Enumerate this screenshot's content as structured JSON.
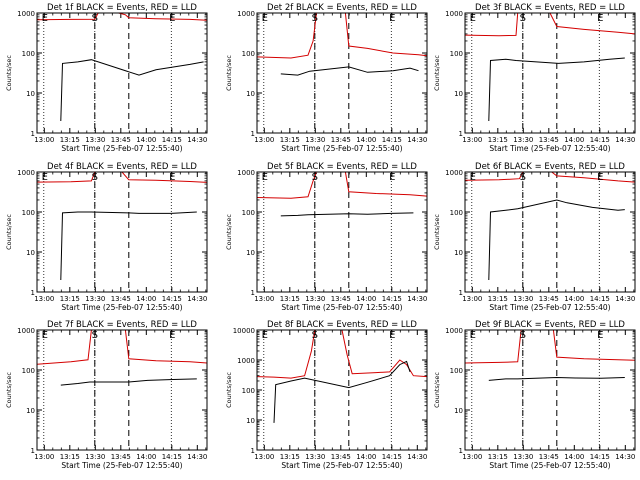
{
  "colors": {
    "events": "#000000",
    "lld": "#d40000",
    "axes": "#000000",
    "background": "#ffffff"
  },
  "shared": {
    "xlabel": "Start Time (25-Feb-07 12:55:40)",
    "ylabel": "Counts/sec",
    "x_ticks": [
      "13:00",
      "13:15",
      "13:30",
      "13:45",
      "14:00",
      "14:15",
      "14:30"
    ],
    "xlim_minutes": [
      0,
      100
    ],
    "marker_S": "S",
    "marker_E": "E"
  },
  "chart_data": [
    {
      "type": "line",
      "title": "Det 1f BLACK = Events, RED = LLD",
      "ylim": [
        1,
        1000
      ],
      "yscale": "log",
      "y_ticks": [
        "1",
        "10",
        "100",
        "1000"
      ],
      "dotted_x": [
        4,
        34,
        79
      ],
      "dashed_x": [
        34,
        54
      ],
      "s_x": 34,
      "e_x": [
        4,
        79
      ],
      "series": [
        {
          "color_key": "lld",
          "points": [
            [
              0,
              680
            ],
            [
              20,
              690
            ],
            [
              34,
              700
            ],
            [
              36,
              1000
            ],
            [
              48,
              1000
            ],
            [
              52,
              900
            ],
            [
              54,
              760
            ],
            [
              70,
              720
            ],
            [
              90,
              690
            ],
            [
              100,
              660
            ]
          ]
        },
        {
          "color_key": "events",
          "points": [
            [
              14,
              2
            ],
            [
              15,
              55
            ],
            [
              24,
              60
            ],
            [
              32,
              68
            ],
            [
              60,
              28
            ],
            [
              70,
              38
            ],
            [
              90,
              52
            ],
            [
              98,
              60
            ]
          ]
        }
      ]
    },
    {
      "type": "line",
      "title": "Det 2f BLACK = Events, RED = LLD",
      "ylim": [
        1,
        1000
      ],
      "yscale": "log",
      "y_ticks": [
        "1",
        "10",
        "100",
        "1000"
      ],
      "dotted_x": [
        4,
        34,
        79
      ],
      "dashed_x": [
        34,
        54
      ],
      "s_x": 34,
      "e_x": [
        4,
        79
      ],
      "series": [
        {
          "color_key": "lld",
          "points": [
            [
              0,
              80
            ],
            [
              20,
              75
            ],
            [
              30,
              88
            ],
            [
              33,
              200
            ],
            [
              35,
              1000
            ],
            [
              52,
              1000
            ],
            [
              54,
              150
            ],
            [
              65,
              130
            ],
            [
              80,
              100
            ],
            [
              95,
              90
            ],
            [
              100,
              85
            ]
          ]
        },
        {
          "color_key": "events",
          "points": [
            [
              14,
              30
            ],
            [
              24,
              28
            ],
            [
              31,
              35
            ],
            [
              54,
              45
            ],
            [
              65,
              33
            ],
            [
              80,
              36
            ],
            [
              90,
              42
            ],
            [
              95,
              36
            ]
          ]
        }
      ]
    },
    {
      "type": "line",
      "title": "Det 3f BLACK = Events, RED = LLD",
      "ylim": [
        1,
        1000
      ],
      "yscale": "log",
      "y_ticks": [
        "1",
        "10",
        "100",
        "1000"
      ],
      "dotted_x": [
        4,
        34,
        79
      ],
      "dashed_x": [
        34,
        54
      ],
      "s_x": 34,
      "e_x": [
        4,
        79
      ],
      "series": [
        {
          "color_key": "lld",
          "points": [
            [
              0,
              280
            ],
            [
              20,
              270
            ],
            [
              30,
              275
            ],
            [
              31,
              1000
            ],
            [
              50,
              1000
            ],
            [
              54,
              460
            ],
            [
              70,
              390
            ],
            [
              90,
              330
            ],
            [
              100,
              300
            ]
          ]
        },
        {
          "color_key": "events",
          "points": [
            [
              14,
              2
            ],
            [
              15,
              65
            ],
            [
              24,
              70
            ],
            [
              30,
              65
            ],
            [
              55,
              55
            ],
            [
              70,
              60
            ],
            [
              85,
              70
            ],
            [
              94,
              75
            ]
          ]
        }
      ]
    },
    {
      "type": "line",
      "title": "Det 4f BLACK = Events, RED = LLD",
      "ylim": [
        1,
        1000
      ],
      "yscale": "log",
      "y_ticks": [
        "1",
        "10",
        "100",
        "1000"
      ],
      "dotted_x": [
        4,
        34,
        79
      ],
      "dashed_x": [
        34,
        54
      ],
      "s_x": 34,
      "e_x": [
        4,
        79
      ],
      "series": [
        {
          "color_key": "lld",
          "points": [
            [
              0,
              560
            ],
            [
              20,
              570
            ],
            [
              32,
              600
            ],
            [
              34,
              1000
            ],
            [
              50,
              1000
            ],
            [
              54,
              640
            ],
            [
              70,
              620
            ],
            [
              90,
              580
            ],
            [
              100,
              550
            ]
          ]
        },
        {
          "color_key": "events",
          "points": [
            [
              14,
              2
            ],
            [
              15,
              95
            ],
            [
              24,
              100
            ],
            [
              32,
              100
            ],
            [
              54,
              95
            ],
            [
              60,
              92
            ],
            [
              79,
              92
            ],
            [
              94,
              100
            ]
          ]
        }
      ]
    },
    {
      "type": "line",
      "title": "Det 5f BLACK = Events, RED = LLD",
      "ylim": [
        1,
        1000
      ],
      "yscale": "log",
      "y_ticks": [
        "1",
        "10",
        "100",
        "1000"
      ],
      "dotted_x": [
        4,
        34,
        79
      ],
      "dashed_x": [
        34,
        54
      ],
      "s_x": 34,
      "e_x": [
        4,
        79
      ],
      "series": [
        {
          "color_key": "lld",
          "points": [
            [
              0,
              230
            ],
            [
              20,
              220
            ],
            [
              30,
              240
            ],
            [
              33,
              600
            ],
            [
              35,
              1000
            ],
            [
              52,
              1000
            ],
            [
              54,
              320
            ],
            [
              70,
              290
            ],
            [
              90,
              270
            ],
            [
              100,
              250
            ]
          ]
        },
        {
          "color_key": "events",
          "points": [
            [
              14,
              80
            ],
            [
              24,
              82
            ],
            [
              30,
              85
            ],
            [
              54,
              90
            ],
            [
              65,
              88
            ],
            [
              79,
              92
            ],
            [
              92,
              95
            ]
          ]
        }
      ]
    },
    {
      "type": "line",
      "title": "Det 6f BLACK = Events, RED = LLD",
      "ylim": [
        1,
        1000
      ],
      "yscale": "log",
      "y_ticks": [
        "1",
        "10",
        "100",
        "1000"
      ],
      "dotted_x": [
        4,
        34,
        79
      ],
      "dashed_x": [
        34,
        54
      ],
      "s_x": 34,
      "e_x": [
        4,
        79
      ],
      "series": [
        {
          "color_key": "lld",
          "points": [
            [
              0,
              620
            ],
            [
              20,
              640
            ],
            [
              32,
              680
            ],
            [
              34,
              1000
            ],
            [
              51,
              1000
            ],
            [
              54,
              800
            ],
            [
              70,
              720
            ],
            [
              90,
              600
            ],
            [
              100,
              560
            ]
          ]
        },
        {
          "color_key": "events",
          "points": [
            [
              14,
              2
            ],
            [
              15,
              100
            ],
            [
              24,
              110
            ],
            [
              31,
              120
            ],
            [
              54,
              200
            ],
            [
              60,
              170
            ],
            [
              75,
              130
            ],
            [
              90,
              110
            ],
            [
              94,
              115
            ]
          ]
        }
      ]
    },
    {
      "type": "line",
      "title": "Det 7f BLACK = Events, RED = LLD",
      "ylim": [
        1,
        1000
      ],
      "yscale": "log",
      "y_ticks": [
        "1",
        "10",
        "100",
        "1000"
      ],
      "dotted_x": [
        4,
        34,
        79
      ],
      "dashed_x": [
        34,
        54
      ],
      "s_x": 34,
      "e_x": [
        4,
        79
      ],
      "series": [
        {
          "color_key": "lld",
          "points": [
            [
              0,
              140
            ],
            [
              20,
              160
            ],
            [
              30,
              180
            ],
            [
              32,
              1000
            ],
            [
              52,
              1000
            ],
            [
              54,
              190
            ],
            [
              70,
              170
            ],
            [
              90,
              160
            ],
            [
              100,
              150
            ]
          ]
        },
        {
          "color_key": "events",
          "points": [
            [
              14,
              42
            ],
            [
              24,
              46
            ],
            [
              31,
              50
            ],
            [
              54,
              50
            ],
            [
              65,
              55
            ],
            [
              80,
              58
            ],
            [
              94,
              60
            ]
          ]
        }
      ]
    },
    {
      "type": "line",
      "title": "Det 8f BLACK = Events, RED = LLD",
      "ylim": [
        1,
        10000
      ],
      "yscale": "log",
      "y_ticks": [
        "1",
        "10",
        "100",
        "1000",
        "10000"
      ],
      "dotted_x": [
        4,
        34,
        79
      ],
      "dashed_x": [
        34,
        54
      ],
      "s_x": 34,
      "e_x": [
        4,
        79
      ],
      "series": [
        {
          "color_key": "lld",
          "points": [
            [
              0,
              280
            ],
            [
              10,
              270
            ],
            [
              20,
              250
            ],
            [
              28,
              300
            ],
            [
              32,
              2000
            ],
            [
              34,
              10000
            ],
            [
              50,
              10000
            ],
            [
              53,
              1500
            ],
            [
              56,
              350
            ],
            [
              70,
              380
            ],
            [
              78,
              400
            ],
            [
              84,
              1000
            ],
            [
              88,
              700
            ],
            [
              92,
              300
            ],
            [
              100,
              280
            ]
          ]
        },
        {
          "color_key": "events",
          "points": [
            [
              10,
              8
            ],
            [
              11,
              150
            ],
            [
              20,
              200
            ],
            [
              28,
              250
            ],
            [
              54,
              120
            ],
            [
              65,
              180
            ],
            [
              78,
              300
            ],
            [
              84,
              700
            ],
            [
              88,
              900
            ],
            [
              90,
              400
            ]
          ]
        }
      ]
    },
    {
      "type": "line",
      "title": "Det 9f BLACK = Events, RED = LLD",
      "ylim": [
        1,
        1000
      ],
      "yscale": "log",
      "y_ticks": [
        "1",
        "10",
        "100",
        "1000"
      ],
      "dotted_x": [
        4,
        34,
        79
      ],
      "dashed_x": [
        34,
        54
      ],
      "s_x": 34,
      "e_x": [
        4,
        79
      ],
      "series": [
        {
          "color_key": "lld",
          "points": [
            [
              0,
              150
            ],
            [
              20,
              155
            ],
            [
              31,
              160
            ],
            [
              33,
              1000
            ],
            [
              52,
              1000
            ],
            [
              54,
              210
            ],
            [
              70,
              190
            ],
            [
              90,
              180
            ],
            [
              100,
              175
            ]
          ]
        },
        {
          "color_key": "events",
          "points": [
            [
              14,
              55
            ],
            [
              24,
              60
            ],
            [
              31,
              60
            ],
            [
              54,
              65
            ],
            [
              65,
              63
            ],
            [
              80,
              62
            ],
            [
              94,
              65
            ]
          ]
        }
      ]
    }
  ]
}
